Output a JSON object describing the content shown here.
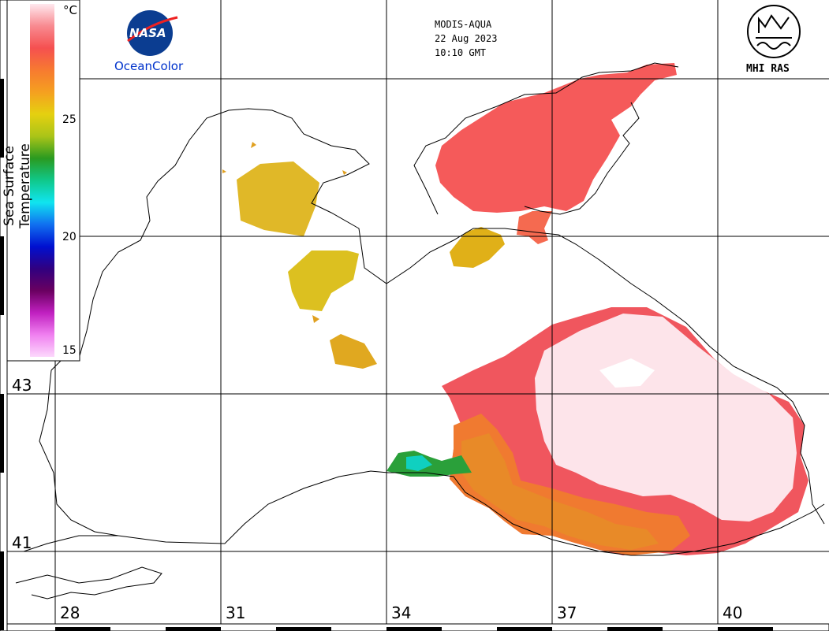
{
  "header": {
    "sensor": "MODIS-AQUA",
    "date": "22 Aug 2023",
    "time": "10:10 GMT"
  },
  "logos": {
    "left_caption": "OceanColor",
    "left_badge": "NASA",
    "right_caption": "MHI RAS"
  },
  "colorbar": {
    "title": "Sea Surface Temperature",
    "unit": "°C",
    "ticks": [
      "25",
      "20",
      "15"
    ],
    "colors": [
      "#ffe8ee",
      "#f88a90",
      "#f55050",
      "#f77a30",
      "#f5a020",
      "#e5d010",
      "#aac418",
      "#2a9a20",
      "#10c88a",
      "#10e4f0",
      "#1070f0",
      "#0010d0",
      "#300080",
      "#6a0060",
      "#c020c0",
      "#f080f0",
      "#fcd8fc"
    ]
  },
  "map": {
    "lon_labels": [
      "28",
      "31",
      "34",
      "37",
      "40"
    ],
    "lat_labels": [
      "43",
      "41"
    ],
    "sst_range_c": [
      15,
      28
    ]
  }
}
